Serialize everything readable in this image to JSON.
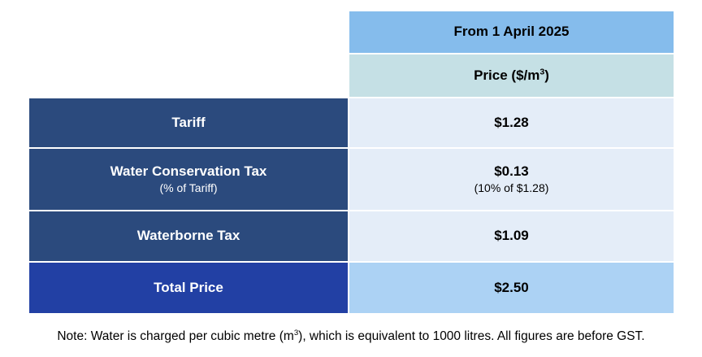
{
  "colors": {
    "header_blue": "#85BCEC",
    "subheader_teal": "#C5E0E5",
    "row_navy": "#2B4A7D",
    "total_blue": "#2240A4",
    "cell_light": "#E4EDF8",
    "total_light": "#ACD2F4"
  },
  "table": {
    "header": {
      "title": "From 1 April 2025"
    },
    "subheader": {
      "pre": "Price ($/m",
      "sup": "3",
      "post": ")"
    },
    "rows": [
      {
        "label": "Tariff",
        "value": "$1.28"
      },
      {
        "label": "Water Conservation Tax",
        "sublabel": "(% of Tariff)",
        "value": "$0.13",
        "subvalue": "(10% of $1.28)"
      },
      {
        "label": "Waterborne Tax",
        "value": "$1.09"
      },
      {
        "label": "Total Price",
        "value": "$2.50"
      }
    ]
  },
  "note": {
    "pre": "Note: Water is charged per cubic metre (m",
    "sup": "3",
    "post": "), which is equivalent to 1000 litres. All figures are before GST."
  },
  "chart_data": {
    "type": "table",
    "title": "From 1 April 2025",
    "columns": [
      "",
      "Price ($/m3)"
    ],
    "rows": [
      [
        "Tariff",
        "$1.28"
      ],
      [
        "Water Conservation Tax (% of Tariff)",
        "$0.13 (10% of $1.28)"
      ],
      [
        "Waterborne Tax",
        "$1.09"
      ],
      [
        "Total Price",
        "$2.50"
      ]
    ],
    "note": "Note: Water is charged per cubic metre (m3), which is equivalent to 1000 litres. All figures are before GST."
  }
}
